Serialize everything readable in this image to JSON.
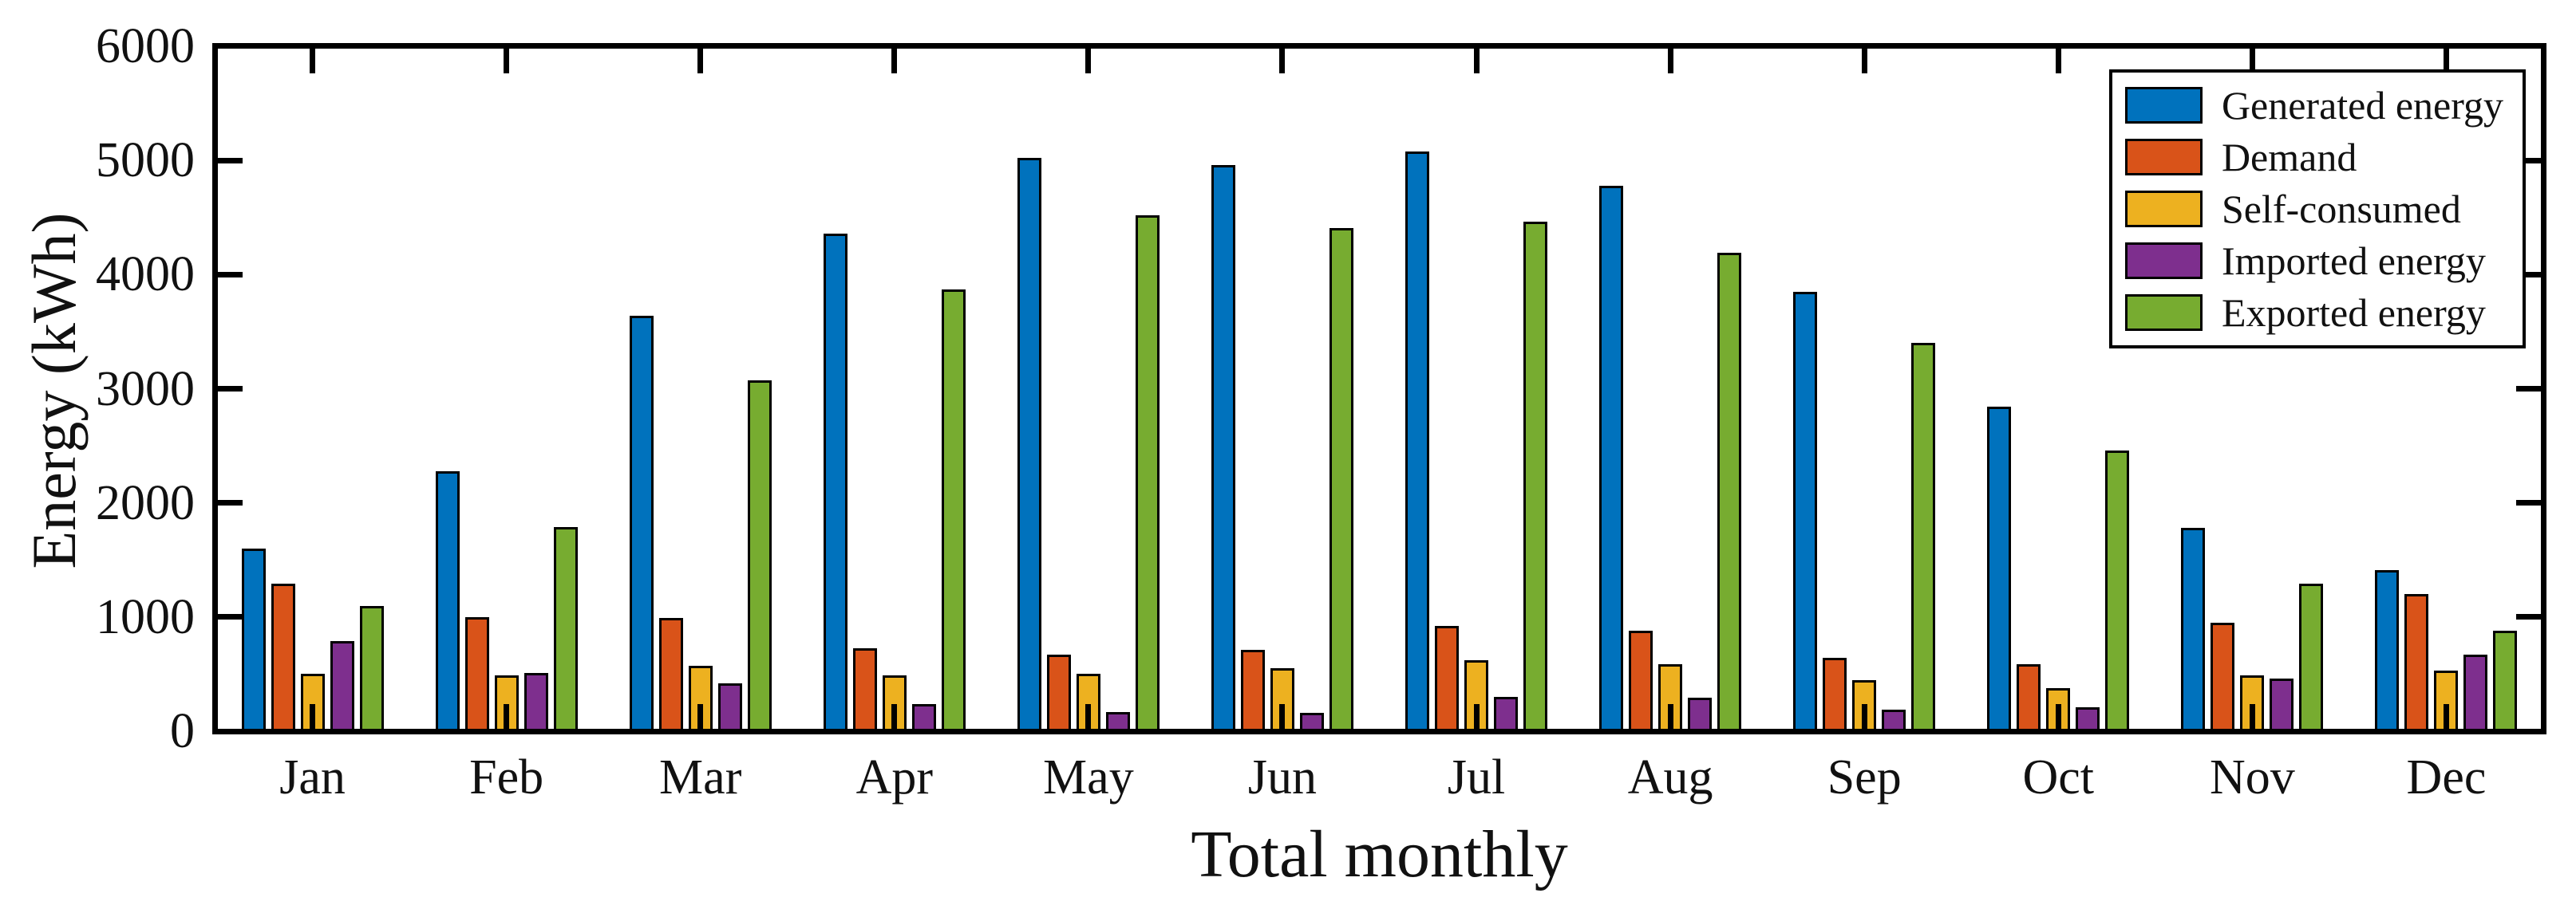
{
  "chart_data": {
    "type": "bar",
    "title": "",
    "xlabel": "Total monthly",
    "ylabel": "Energy (kWh)",
    "categories": [
      "Jan",
      "Feb",
      "Mar",
      "Apr",
      "May",
      "Jun",
      "Jul",
      "Aug",
      "Sep",
      "Oct",
      "Nov",
      "Dec"
    ],
    "series": [
      {
        "name": "Generated energy",
        "color": "#0072BD",
        "values": [
          1600,
          2280,
          3640,
          4360,
          5020,
          4960,
          5080,
          4780,
          3850,
          2840,
          1780,
          1410
        ]
      },
      {
        "name": "Demand",
        "color": "#D95319",
        "values": [
          1290,
          1000,
          990,
          730,
          670,
          710,
          920,
          880,
          640,
          590,
          950,
          1200
        ]
      },
      {
        "name": "Self-consumed",
        "color": "#EDB120",
        "values": [
          500,
          490,
          570,
          490,
          500,
          550,
          620,
          590,
          450,
          380,
          490,
          530
        ]
      },
      {
        "name": "Imported energy",
        "color": "#7E2F8E",
        "values": [
          790,
          510,
          420,
          240,
          170,
          160,
          300,
          290,
          190,
          210,
          460,
          670
        ]
      },
      {
        "name": "Exported energy",
        "color": "#77AC30",
        "values": [
          1100,
          1790,
          3070,
          3870,
          4520,
          4410,
          4460,
          4190,
          3400,
          2460,
          1290,
          880
        ]
      }
    ],
    "ylim": [
      0,
      6000
    ],
    "ytick_labels": [
      "0",
      "1000",
      "2000",
      "3000",
      "4000",
      "5000",
      "6000"
    ],
    "grid": false,
    "legend_position": "top-right-inside",
    "axis_color": "#000000",
    "bar_edge_color": "#000000",
    "background_color": "#ffffff"
  }
}
